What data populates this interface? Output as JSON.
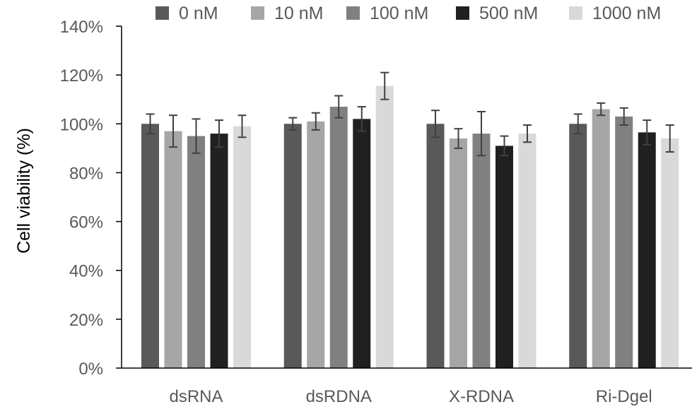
{
  "chart_data": {
    "type": "bar",
    "title": "",
    "xlabel": "",
    "ylabel": "Cell viability (%)",
    "ylim": [
      0,
      140
    ],
    "yticks": [
      0,
      20,
      40,
      60,
      80,
      100,
      120,
      140
    ],
    "ytick_labels": [
      "0%",
      "20%",
      "40%",
      "60%",
      "80%",
      "100%",
      "120%",
      "140%"
    ],
    "categories": [
      "dsRNA",
      "dsRDNA",
      "X-RDNA",
      "Ri-Dgel"
    ],
    "series": [
      {
        "name": "0 nM",
        "color": "#595959",
        "values": [
          100,
          100,
          100,
          100
        ],
        "errors": [
          4.0,
          2.5,
          5.5,
          4.0
        ]
      },
      {
        "name": "10 nM",
        "color": "#a6a6a6",
        "values": [
          97,
          101,
          94,
          106
        ],
        "errors": [
          6.5,
          3.5,
          4.0,
          2.5
        ]
      },
      {
        "name": "100 nM",
        "color": "#808080",
        "values": [
          95,
          107,
          96,
          103
        ],
        "errors": [
          7.0,
          4.5,
          9.0,
          3.5
        ]
      },
      {
        "name": "500 nM",
        "color": "#202020",
        "values": [
          96,
          102,
          91,
          96.5
        ],
        "errors": [
          5.5,
          5.0,
          4.0,
          5.0
        ]
      },
      {
        "name": "1000 nM",
        "color": "#d9d9d9",
        "values": [
          99,
          115.5,
          96,
          94
        ],
        "errors": [
          4.5,
          5.5,
          3.5,
          5.5
        ]
      }
    ],
    "legend_position": "top",
    "grid": false,
    "error_bar_color": "#404040"
  }
}
